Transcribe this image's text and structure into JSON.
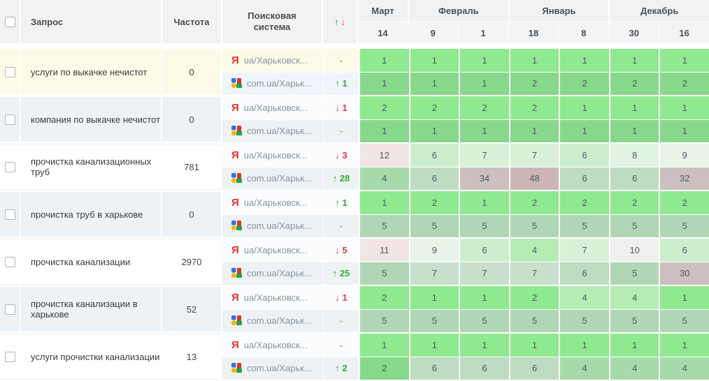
{
  "header": {
    "query": "Запрос",
    "frequency": "Частота",
    "engine_line1": "Поисковая",
    "engine_line2": "система",
    "sort_up": "↑",
    "sort_down": "↓",
    "months": [
      {
        "label": "Март",
        "dates": [
          "14"
        ]
      },
      {
        "label": "Февраль",
        "dates": [
          "9",
          "1"
        ]
      },
      {
        "label": "Январь",
        "dates": [
          "18",
          "8"
        ]
      },
      {
        "label": "Декабрь",
        "dates": [
          "30",
          "16"
        ]
      }
    ]
  },
  "engines": {
    "yandex": {
      "icon": "yandex-icon",
      "glyph": "Я",
      "label": "ua/Харьковск..."
    },
    "google": {
      "icon": "google-icon",
      "label": "com.ua/Харьк..."
    }
  },
  "colors": {
    "accent_up": "#2fae2f",
    "accent_down": "#e23b3b",
    "dash": "#a9b325",
    "highlight_row": "#fdfbe8",
    "alt_row": "#edf2f7",
    "position_scale": [
      {
        "max": 2,
        "color": "#8fe98f"
      },
      {
        "max": 4,
        "color": "#b4ecb4"
      },
      {
        "max": 5,
        "color": "#bfe7bf"
      },
      {
        "max": 6,
        "color": "#cdeecd"
      },
      {
        "max": 7,
        "color": "#d9f1d9"
      },
      {
        "max": 8,
        "color": "#e1f3e1"
      },
      {
        "max": 9,
        "color": "#e9f4e9"
      },
      {
        "max": 10,
        "color": "#f0f0f0"
      },
      {
        "max": 12,
        "color": "#f2e5e5"
      },
      {
        "max": 35,
        "color": "#e0cccc"
      },
      {
        "max": 999,
        "color": "#e0bfbf"
      }
    ]
  },
  "rows": [
    {
      "query": "услуги по выкачке нечистот",
      "frequency": "0",
      "style": "highlight",
      "sub": [
        {
          "engine": "yandex",
          "dir": "none",
          "change": "-",
          "positions": [
            1,
            1,
            1,
            1,
            1,
            1,
            1
          ]
        },
        {
          "engine": "google",
          "dir": "up",
          "change": "1",
          "positions": [
            1,
            1,
            1,
            2,
            2,
            2,
            2
          ]
        }
      ]
    },
    {
      "query": "компания по выкачке нечистот",
      "frequency": "0",
      "style": "alt",
      "sub": [
        {
          "engine": "yandex",
          "dir": "down",
          "change": "1",
          "positions": [
            2,
            2,
            2,
            2,
            1,
            1,
            1
          ]
        },
        {
          "engine": "google",
          "dir": "none",
          "change": "-",
          "positions": [
            1,
            1,
            1,
            1,
            1,
            1,
            1
          ]
        }
      ]
    },
    {
      "query": "прочистка канализационных труб",
      "frequency": "781",
      "style": "plain",
      "sub": [
        {
          "engine": "yandex",
          "dir": "down",
          "change": "3",
          "positions": [
            12,
            6,
            7,
            7,
            6,
            8,
            9
          ]
        },
        {
          "engine": "google",
          "dir": "up",
          "change": "28",
          "positions": [
            4,
            6,
            34,
            48,
            6,
            6,
            32
          ]
        }
      ]
    },
    {
      "query": "прочистка труб в харькове",
      "frequency": "0",
      "style": "alt",
      "sub": [
        {
          "engine": "yandex",
          "dir": "up",
          "change": "1",
          "positions": [
            1,
            2,
            1,
            2,
            2,
            2,
            2
          ]
        },
        {
          "engine": "google",
          "dir": "none",
          "change": "-",
          "positions": [
            5,
            5,
            5,
            5,
            5,
            5,
            5
          ]
        }
      ]
    },
    {
      "query": "прочистка канализации",
      "frequency": "2970",
      "style": "plain",
      "sub": [
        {
          "engine": "yandex",
          "dir": "down",
          "change": "5",
          "positions": [
            11,
            9,
            6,
            4,
            7,
            10,
            6
          ]
        },
        {
          "engine": "google",
          "dir": "up",
          "change": "25",
          "positions": [
            5,
            7,
            7,
            7,
            6,
            5,
            30
          ]
        }
      ]
    },
    {
      "query": "прочистка канализации в харькове",
      "frequency": "52",
      "style": "alt",
      "sub": [
        {
          "engine": "yandex",
          "dir": "down",
          "change": "1",
          "positions": [
            2,
            1,
            1,
            2,
            4,
            4,
            1
          ]
        },
        {
          "engine": "google",
          "dir": "none",
          "change": "-",
          "positions": [
            5,
            5,
            5,
            5,
            5,
            5,
            5
          ]
        }
      ]
    },
    {
      "query": "услуги прочистки канализации",
      "frequency": "13",
      "style": "plain",
      "sub": [
        {
          "engine": "yandex",
          "dir": "none",
          "change": "-",
          "positions": [
            1,
            1,
            1,
            1,
            1,
            1,
            1
          ]
        },
        {
          "engine": "google",
          "dir": "up",
          "change": "2",
          "positions": [
            2,
            6,
            6,
            6,
            4,
            4,
            4
          ]
        }
      ]
    }
  ]
}
